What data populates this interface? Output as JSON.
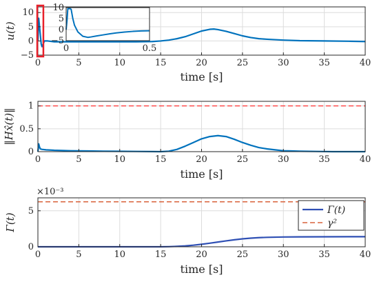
{
  "chart_data": [
    {
      "type": "line",
      "ylabel": "u(t)",
      "xlabel": "time [s]",
      "xlim": [
        0,
        40
      ],
      "ylim": [
        -5,
        12
      ],
      "xticks": [
        "0",
        "5",
        "10",
        "15",
        "20",
        "25",
        "30",
        "35",
        "40"
      ],
      "yticks": [
        "-5",
        "0",
        "5",
        "10"
      ],
      "grid": true,
      "series": [
        {
          "color": "#0072BD",
          "x": [
            0,
            0.1,
            0.2,
            0.3,
            0.4,
            0.5,
            0.8,
            1.2,
            2,
            4,
            6,
            8,
            10,
            12,
            14,
            15,
            16,
            17,
            18,
            19,
            20,
            21,
            21.5,
            22,
            23,
            24,
            25,
            26,
            27,
            28,
            30,
            32,
            35,
            38,
            40
          ],
          "y": [
            0,
            8,
            5,
            2,
            -1,
            -2,
            0,
            0,
            -0.3,
            -0.3,
            -0.3,
            -0.3,
            -0.3,
            -0.3,
            -0.2,
            0,
            0.3,
            0.8,
            1.5,
            2.5,
            3.5,
            4.1,
            4.2,
            4.0,
            3.4,
            2.6,
            1.8,
            1.2,
            0.8,
            0.6,
            0.3,
            0.1,
            0,
            -0.1,
            -0.2
          ]
        }
      ],
      "highlight_box_x": [
        0,
        0.5
      ],
      "inset": {
        "xlim": [
          0,
          0.5
        ],
        "ylim": [
          -5,
          10
        ],
        "xticks": [
          "0",
          "0.5"
        ],
        "yticks": [
          "-5",
          "0",
          "5",
          "10"
        ],
        "x": [
          0,
          0.005,
          0.01,
          0.02,
          0.025,
          0.03,
          0.04,
          0.05,
          0.07,
          0.1,
          0.13,
          0.15,
          0.18,
          0.22,
          0.26,
          0.3,
          0.35,
          0.4,
          0.45,
          0.5
        ],
        "y": [
          0,
          4,
          9.5,
          9.5,
          9.5,
          9.2,
          5,
          2,
          -1,
          -3,
          -3.5,
          -3.3,
          -2.9,
          -2.4,
          -1.9,
          -1.5,
          -1.1,
          -0.8,
          -0.6,
          -0.5
        ]
      }
    },
    {
      "type": "line",
      "ylabel": "‖Hx̂(t)‖",
      "xlabel": "time [s]",
      "xlim": [
        0,
        40
      ],
      "ylim": [
        0,
        1.1
      ],
      "xticks": [
        "0",
        "5",
        "10",
        "15",
        "20",
        "25",
        "30",
        "35",
        "40"
      ],
      "yticks": [
        "0",
        "0.5",
        "1"
      ],
      "grid": true,
      "reference_line": {
        "y": 1,
        "color": "#ff3030",
        "style": "dashed"
      },
      "series": [
        {
          "color": "#0072BD",
          "x": [
            0,
            0.1,
            0.2,
            0.3,
            0.5,
            1,
            2,
            4,
            6,
            8,
            10,
            12,
            14,
            15,
            16,
            17,
            18,
            19,
            20,
            21,
            22,
            23,
            24,
            25,
            26,
            27,
            28,
            29,
            30,
            31,
            32,
            34,
            36,
            38,
            40
          ],
          "y": [
            0,
            0.17,
            0.1,
            0.06,
            0.05,
            0.04,
            0.03,
            0.02,
            0.015,
            0.01,
            0.008,
            0.005,
            0.002,
            0,
            0.01,
            0.05,
            0.12,
            0.2,
            0.28,
            0.33,
            0.35,
            0.33,
            0.27,
            0.2,
            0.14,
            0.09,
            0.06,
            0.04,
            0.02,
            0.015,
            0.01,
            0.005,
            0,
            0,
            0
          ]
        }
      ]
    },
    {
      "type": "line",
      "ylabel": "Γ(t)",
      "xlabel": "time [s]",
      "axis_multiplier": "×10⁻³",
      "xlim": [
        0,
        40
      ],
      "ylim": [
        0,
        6.8
      ],
      "xticks": [
        "0",
        "5",
        "10",
        "15",
        "20",
        "25",
        "30",
        "35",
        "40"
      ],
      "yticks": [
        "0",
        "5"
      ],
      "grid": true,
      "legend_position": "top-right",
      "series": [
        {
          "name": "Γ(t)",
          "color": "#2e4fb4",
          "x": [
            0,
            5,
            10,
            15,
            16,
            17,
            18,
            19,
            20,
            21,
            22,
            23,
            24,
            25,
            26,
            27,
            28,
            30,
            32,
            35,
            38,
            40
          ],
          "y": [
            0,
            0,
            0,
            0,
            0.02,
            0.06,
            0.12,
            0.22,
            0.35,
            0.5,
            0.66,
            0.82,
            0.97,
            1.1,
            1.2,
            1.27,
            1.31,
            1.36,
            1.38,
            1.39,
            1.4,
            1.4
          ]
        },
        {
          "name": "γ²",
          "color": "#d9603a",
          "style": "dashed",
          "x": [
            0,
            40
          ],
          "y": [
            6.25,
            6.25
          ]
        }
      ]
    }
  ]
}
